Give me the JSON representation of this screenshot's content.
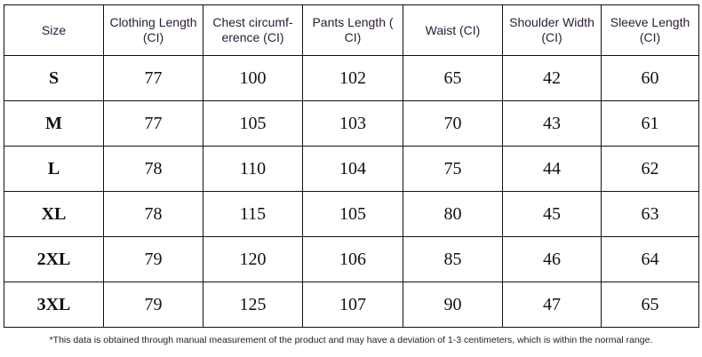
{
  "table": {
    "header": [
      "Size",
      "Clothing Length (CI)",
      "Chest circumf- erence (CI)",
      "Pants Length ( CI)",
      "Waist (CI)",
      "Shoulder Width (CI)",
      "Sleeve Length (CI)"
    ],
    "rows": [
      [
        "S",
        77,
        100,
        102,
        65,
        42,
        60
      ],
      [
        "M",
        77,
        105,
        103,
        70,
        43,
        61
      ],
      [
        "L",
        78,
        110,
        104,
        75,
        44,
        62
      ],
      [
        "XL",
        78,
        115,
        105,
        80,
        45,
        63
      ],
      [
        "2XL",
        79,
        120,
        106,
        85,
        46,
        64
      ],
      [
        "3XL",
        79,
        125,
        107,
        90,
        47,
        65
      ]
    ]
  },
  "note": "*This data is obtained through manual measurement of the product and may have a deviation of 1-3 centimeters, which is within the normal range."
}
